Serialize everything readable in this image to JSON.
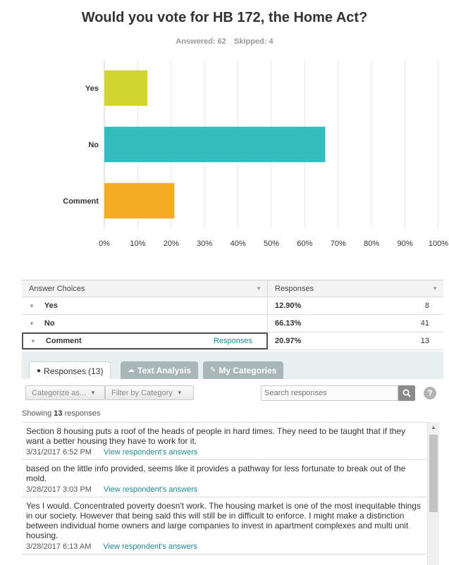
{
  "title": "Would you vote for HB 172, the Home Act?",
  "stats": {
    "answered": "Answered: 62",
    "skipped": "Skipped: 4"
  },
  "chart_data": {
    "type": "bar",
    "orientation": "horizontal",
    "categories": [
      "Yes",
      "No",
      "Comment"
    ],
    "values": [
      12.9,
      66.13,
      20.97
    ],
    "colors": [
      "#d2d52f",
      "#33bdbd",
      "#f5ae23"
    ],
    "xlim": [
      0,
      100
    ],
    "xticks": [
      "0%",
      "10%",
      "20%",
      "30%",
      "40%",
      "50%",
      "60%",
      "70%",
      "80%",
      "90%",
      "100%"
    ],
    "grid": true
  },
  "table": {
    "headers": [
      "Answer Choices",
      "Responses"
    ],
    "rows": [
      {
        "choice": "Yes",
        "percent": "12.90%",
        "count": "8"
      },
      {
        "choice": "No",
        "percent": "66.13%",
        "count": "41"
      },
      {
        "choice": "Comment",
        "link": "Responses",
        "percent": "20.97%",
        "count": "13"
      }
    ]
  },
  "tabs": {
    "responses": "Responses",
    "responses_count": "(13)",
    "text_analysis": "Text Analysis",
    "my_categories": "My Categories"
  },
  "filters": {
    "categorize": "Categorize as...",
    "filter": "Filter by Category",
    "search_placeholder": "Search responses"
  },
  "showing": {
    "prefix": "Showing",
    "count": "13",
    "suffix": "responses"
  },
  "responses": [
    {
      "text": "Section 8 housing puts a roof of the heads of people in hard times. They need to be taught that if they want a better housing they have to work for it.",
      "date": "3/31/2017 6:52 PM",
      "link": "View respondent's answers"
    },
    {
      "text": "based on the little info provided, seems like it provides a pathway for less fortunate to break out of the mold.",
      "date": "3/28/2017 3:03 PM",
      "link": "View respondent's answers"
    },
    {
      "text": "Yes I would. Concentrated poverty doesn't work. The housing market is one of the most inequitable things in our society. However that being said this will still be in difficult to enforce. I might make a distinction between individual home owners and large companies to invest in apartment complexes and multi unit housing.",
      "date": "3/28/2017 6:13 AM",
      "link": "View respondent's answers"
    }
  ]
}
